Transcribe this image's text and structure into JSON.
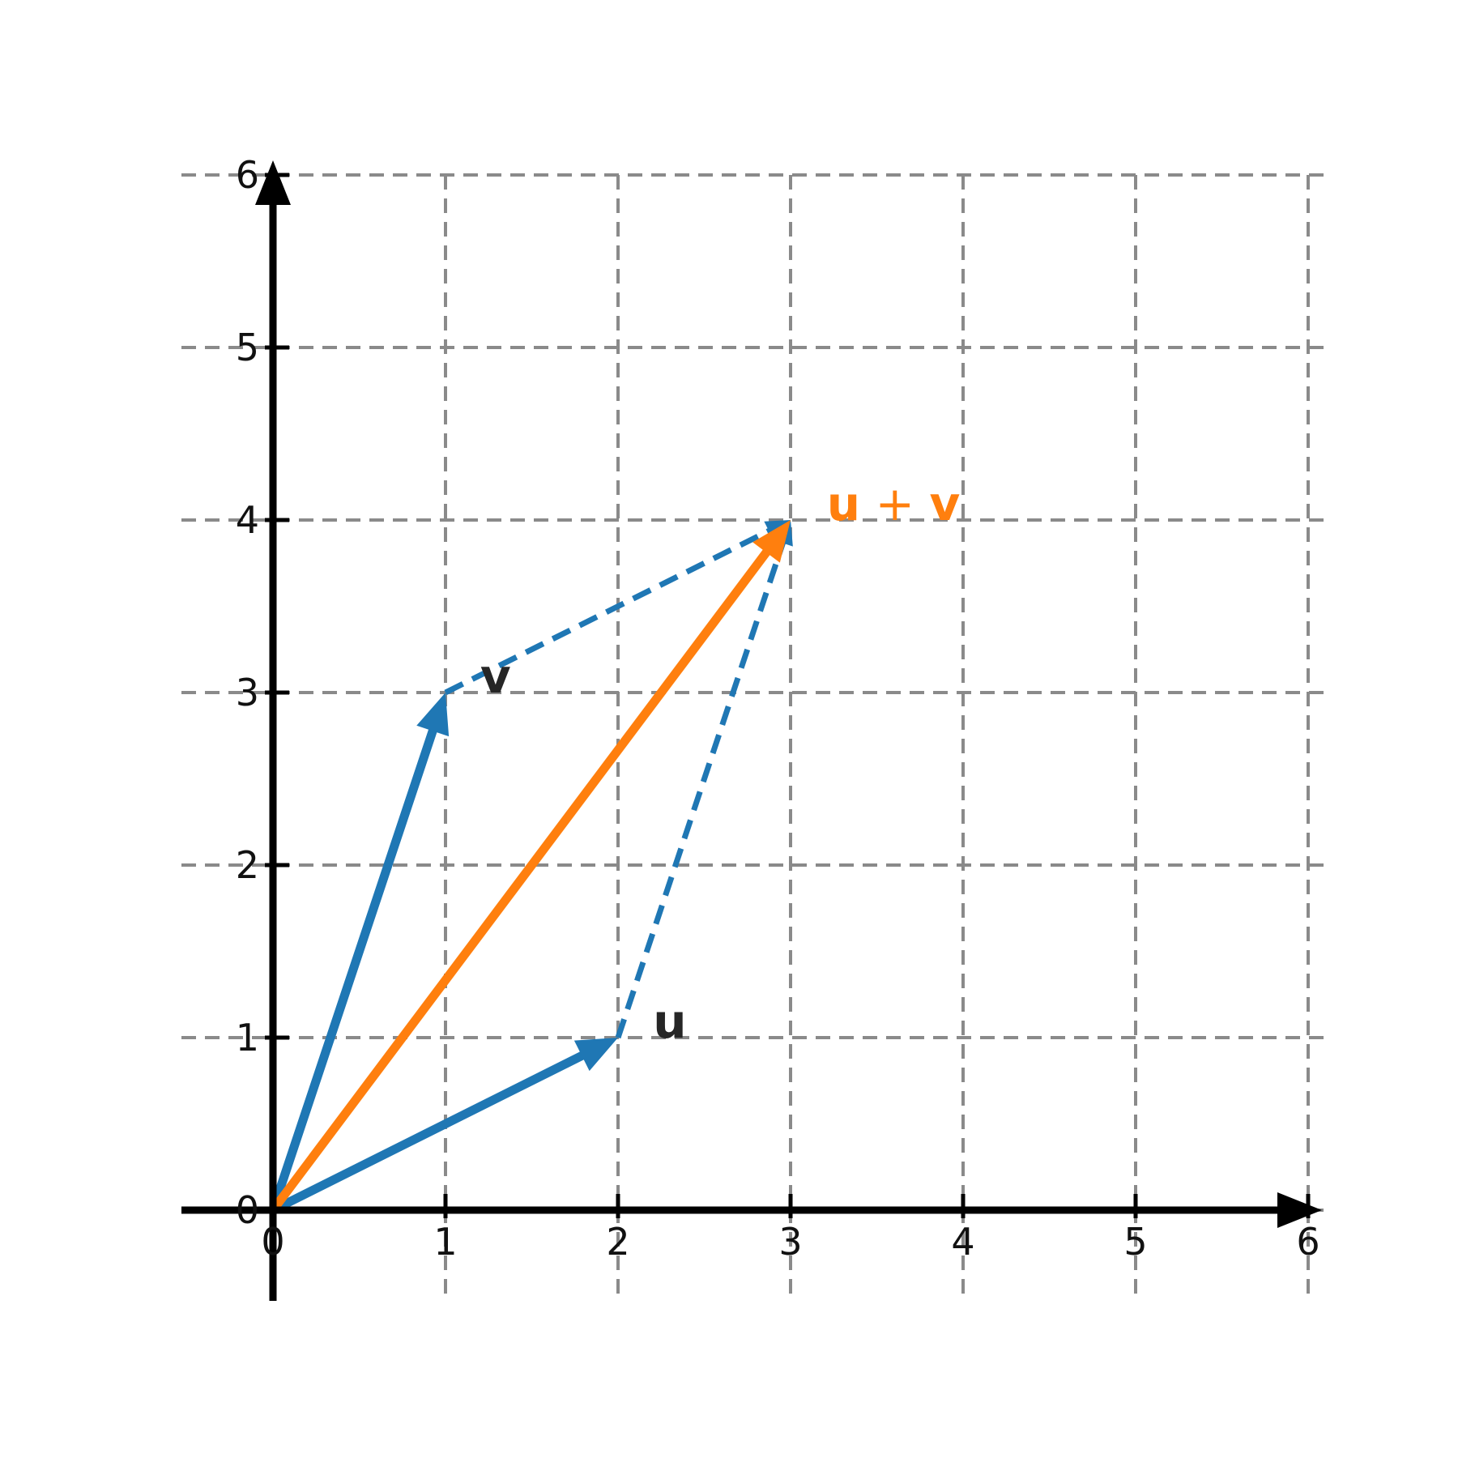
{
  "chart_data": {
    "type": "vector-diagram",
    "title": "",
    "axes": {
      "x_ticks": [
        "0",
        "1",
        "2",
        "3",
        "4",
        "5",
        "6"
      ],
      "y_ticks": [
        "0",
        "1",
        "2",
        "3",
        "4",
        "5",
        "6"
      ],
      "x_range": [
        0,
        6
      ],
      "y_range": [
        0,
        6
      ],
      "grid": "dashed"
    },
    "vectors": [
      {
        "name": "u",
        "from": [
          0,
          0
        ],
        "to": [
          2,
          1
        ],
        "color": "#1f77b4",
        "style": "solid",
        "label_parts": [
          {
            "t": "u",
            "bold": true
          }
        ],
        "label_pos": [
          2.3,
          1.0
        ],
        "label_anchor": "middle",
        "label_color": "#262626"
      },
      {
        "name": "v",
        "from": [
          0,
          0
        ],
        "to": [
          1,
          3
        ],
        "color": "#1f77b4",
        "style": "solid",
        "label_parts": [
          {
            "t": "v",
            "bold": true
          }
        ],
        "label_pos": [
          1.29,
          3.0
        ],
        "label_anchor": "middle",
        "label_color": "#262626"
      },
      {
        "name": "u-plus-v",
        "from": [
          0,
          0
        ],
        "to": [
          3,
          4
        ],
        "color": "#ff7f0e",
        "style": "solid",
        "label_parts": [
          {
            "t": "u",
            "bold": true
          },
          {
            "t": " + ",
            "bold": false
          },
          {
            "t": "v",
            "bold": true
          }
        ],
        "label_pos": [
          3.21,
          4.0
        ],
        "label_anchor": "start",
        "label_color": "#ff7f0e"
      }
    ],
    "helper_lines": [
      {
        "name": "v-tip-to-sum",
        "from": [
          1,
          3
        ],
        "to": [
          3,
          4
        ],
        "color": "#1f77b4",
        "style": "dashed"
      },
      {
        "name": "u-tip-to-sum",
        "from": [
          2,
          1
        ],
        "to": [
          3,
          4
        ],
        "color": "#1f77b4",
        "style": "dashed"
      }
    ],
    "colors": {
      "vector_blue": "#1f77b4",
      "vector_orange": "#ff7f0e",
      "grid_gray": "#8a8a8a",
      "axis_black": "#000000",
      "label_dark": "#262626"
    }
  }
}
